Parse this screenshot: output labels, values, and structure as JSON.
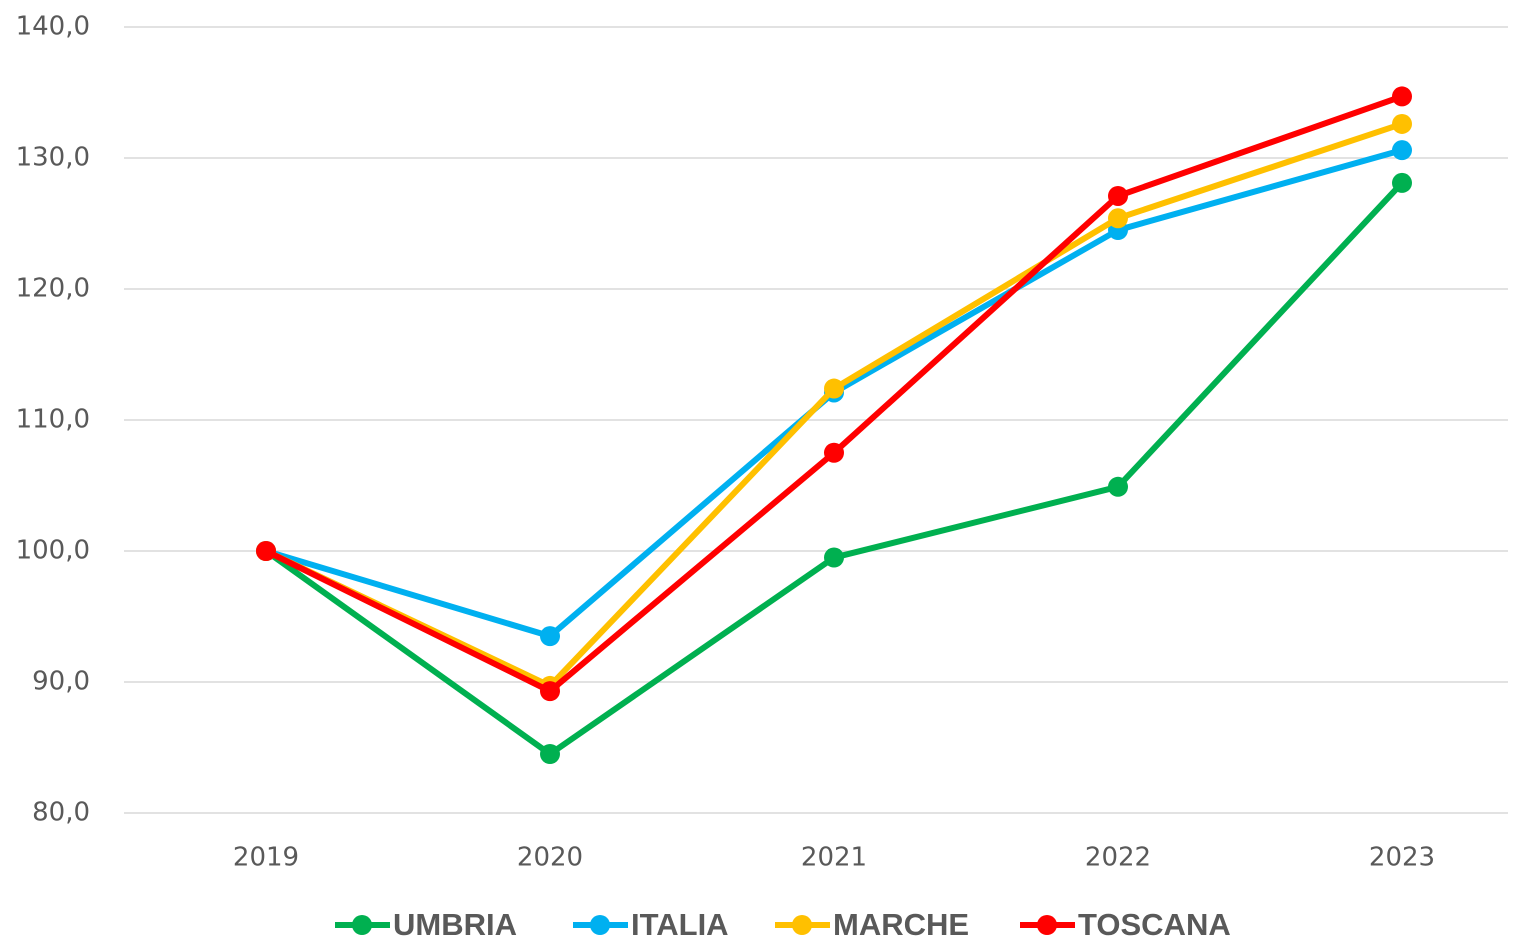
{
  "chart_data": {
    "type": "line",
    "categories": [
      "2019",
      "2020",
      "2021",
      "2022",
      "2023"
    ],
    "series": [
      {
        "name": "UMBRIA",
        "color": "#00b050",
        "values": [
          100,
          84.5,
          99.5,
          104.9,
          128.1
        ]
      },
      {
        "name": "ITALIA",
        "color": "#00b0f0",
        "values": [
          100,
          93.5,
          112.1,
          124.5,
          130.6
        ]
      },
      {
        "name": "MARCHE",
        "color": "#ffc000",
        "values": [
          100,
          89.7,
          112.4,
          125.4,
          132.6
        ]
      },
      {
        "name": "TOSCANA",
        "color": "#ff0000",
        "values": [
          100,
          89.3,
          107.5,
          127.1,
          134.7
        ]
      }
    ],
    "ylim": [
      80,
      140
    ],
    "yticks": [
      {
        "value": 80,
        "label": "80,0"
      },
      {
        "value": 90,
        "label": "90,0"
      },
      {
        "value": 100,
        "label": "100,0"
      },
      {
        "value": 110,
        "label": "110,0"
      },
      {
        "value": 120,
        "label": "120,0"
      },
      {
        "value": 130,
        "label": "130,0"
      },
      {
        "value": 140,
        "label": "140,0"
      }
    ],
    "grid": true,
    "legend": "bottom"
  }
}
